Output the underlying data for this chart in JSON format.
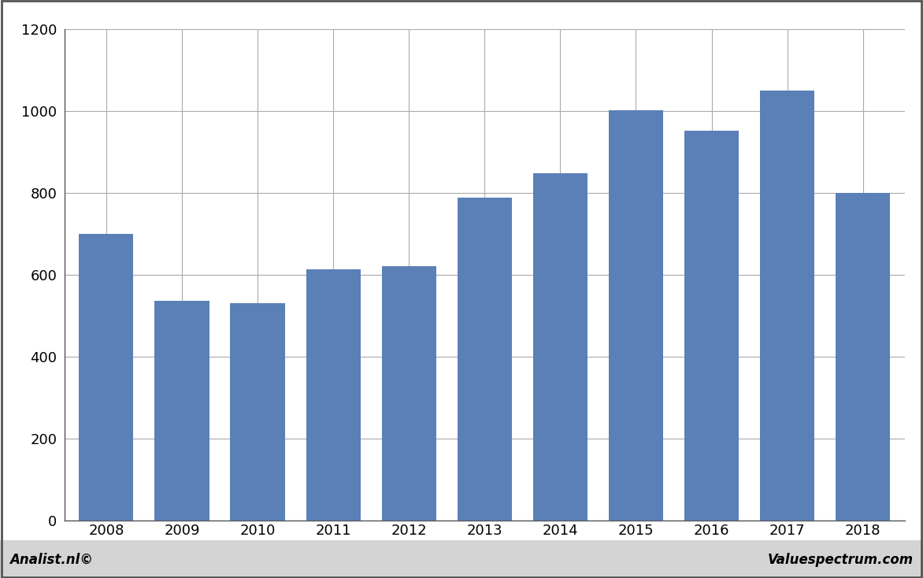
{
  "categories": [
    "2008",
    "2009",
    "2010",
    "2011",
    "2012",
    "2013",
    "2014",
    "2015",
    "2016",
    "2017",
    "2018"
  ],
  "values": [
    700,
    535,
    530,
    612,
    620,
    787,
    847,
    1002,
    952,
    1050,
    800
  ],
  "bar_color": "#5b80b8",
  "ylim": [
    0,
    1200
  ],
  "yticks": [
    0,
    200,
    400,
    600,
    800,
    1000,
    1200
  ],
  "background_color": "#ffffff",
  "plot_background": "#ffffff",
  "grid_color": "#aaaaaa",
  "footer_left": "Analist.nl©",
  "footer_right": "Valuespectrum.com",
  "border_color": "#555555",
  "footer_bg": "#d4d4d4"
}
